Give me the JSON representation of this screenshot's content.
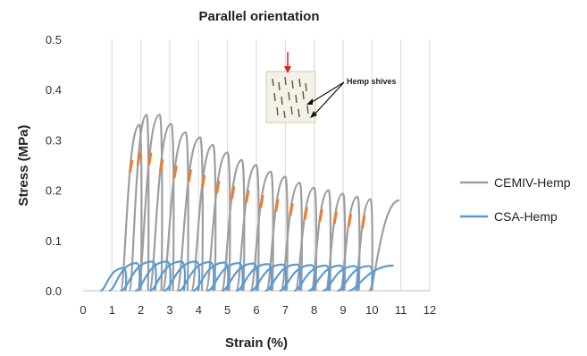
{
  "chart_data": {
    "type": "line",
    "title": "Parallel orientation",
    "xlabel": "Strain (%)",
    "ylabel": "Stress (MPa)",
    "xlim": [
      0,
      12
    ],
    "ylim": [
      0,
      0.5
    ],
    "xticks": [
      0,
      1,
      2,
      3,
      4,
      5,
      6,
      7,
      8,
      9,
      10,
      11,
      12
    ],
    "yticks": [
      "0.0",
      "0.1",
      "0.2",
      "0.3",
      "0.4",
      "0.5"
    ],
    "grid": "vertical",
    "legend_position": "right",
    "series": [
      {
        "name": "CEMIV-Hemp",
        "color": "#9e9e9e",
        "marker_color": "#ed7d31",
        "unloading_cycles": [
          {
            "start": 1.3,
            "peak_x": 1.95,
            "peak_y": 0.33
          },
          {
            "start": 1.6,
            "peak_x": 2.2,
            "peak_y": 0.35
          },
          {
            "start": 1.9,
            "peak_x": 2.65,
            "peak_y": 0.35
          },
          {
            "start": 2.3,
            "peak_x": 3.05,
            "peak_y": 0.332
          },
          {
            "start": 2.75,
            "peak_x": 3.55,
            "peak_y": 0.315
          },
          {
            "start": 3.25,
            "peak_x": 4.05,
            "peak_y": 0.305
          },
          {
            "start": 3.75,
            "peak_x": 4.5,
            "peak_y": 0.29
          },
          {
            "start": 4.25,
            "peak_x": 5.0,
            "peak_y": 0.275
          },
          {
            "start": 4.8,
            "peak_x": 5.5,
            "peak_y": 0.26
          },
          {
            "start": 5.3,
            "peak_x": 6.0,
            "peak_y": 0.25
          },
          {
            "start": 5.8,
            "peak_x": 6.5,
            "peak_y": 0.237
          },
          {
            "start": 6.35,
            "peak_x": 7.0,
            "peak_y": 0.227
          },
          {
            "start": 6.85,
            "peak_x": 7.5,
            "peak_y": 0.215
          },
          {
            "start": 7.35,
            "peak_x": 8.0,
            "peak_y": 0.205
          },
          {
            "start": 7.9,
            "peak_x": 8.5,
            "peak_y": 0.2
          },
          {
            "start": 8.4,
            "peak_x": 9.0,
            "peak_y": 0.193
          },
          {
            "start": 8.9,
            "peak_x": 9.5,
            "peak_y": 0.187
          },
          {
            "start": 9.4,
            "peak_x": 9.95,
            "peak_y": 0.182
          }
        ],
        "final": {
          "start": 9.9,
          "end_x": 10.95,
          "end_y": 0.18
        }
      },
      {
        "name": "CSA-Hemp",
        "color": "#5b9bd5",
        "unloading_cycles": [
          {
            "start": 0.6,
            "peak_x": 1.4,
            "peak_y": 0.045
          },
          {
            "start": 0.9,
            "peak_x": 1.85,
            "peak_y": 0.055
          },
          {
            "start": 1.3,
            "peak_x": 2.4,
            "peak_y": 0.058
          },
          {
            "start": 1.8,
            "peak_x": 2.9,
            "peak_y": 0.058
          },
          {
            "start": 2.3,
            "peak_x": 3.4,
            "peak_y": 0.058
          },
          {
            "start": 2.8,
            "peak_x": 3.9,
            "peak_y": 0.058
          },
          {
            "start": 3.3,
            "peak_x": 4.4,
            "peak_y": 0.057
          },
          {
            "start": 3.8,
            "peak_x": 4.9,
            "peak_y": 0.056
          },
          {
            "start": 4.3,
            "peak_x": 5.4,
            "peak_y": 0.055
          },
          {
            "start": 4.8,
            "peak_x": 5.9,
            "peak_y": 0.054
          },
          {
            "start": 5.3,
            "peak_x": 6.4,
            "peak_y": 0.053
          },
          {
            "start": 5.8,
            "peak_x": 6.9,
            "peak_y": 0.052
          },
          {
            "start": 6.3,
            "peak_x": 7.4,
            "peak_y": 0.052
          },
          {
            "start": 6.8,
            "peak_x": 7.9,
            "peak_y": 0.051
          },
          {
            "start": 7.3,
            "peak_x": 8.4,
            "peak_y": 0.05
          },
          {
            "start": 7.8,
            "peak_x": 8.9,
            "peak_y": 0.05
          },
          {
            "start": 8.3,
            "peak_x": 9.4,
            "peak_y": 0.049
          },
          {
            "start": 8.8,
            "peak_x": 9.9,
            "peak_y": 0.049
          }
        ],
        "final": {
          "start": 9.2,
          "end_x": 10.75,
          "end_y": 0.05
        }
      }
    ],
    "inset": {
      "label": "Hemp shives"
    }
  }
}
